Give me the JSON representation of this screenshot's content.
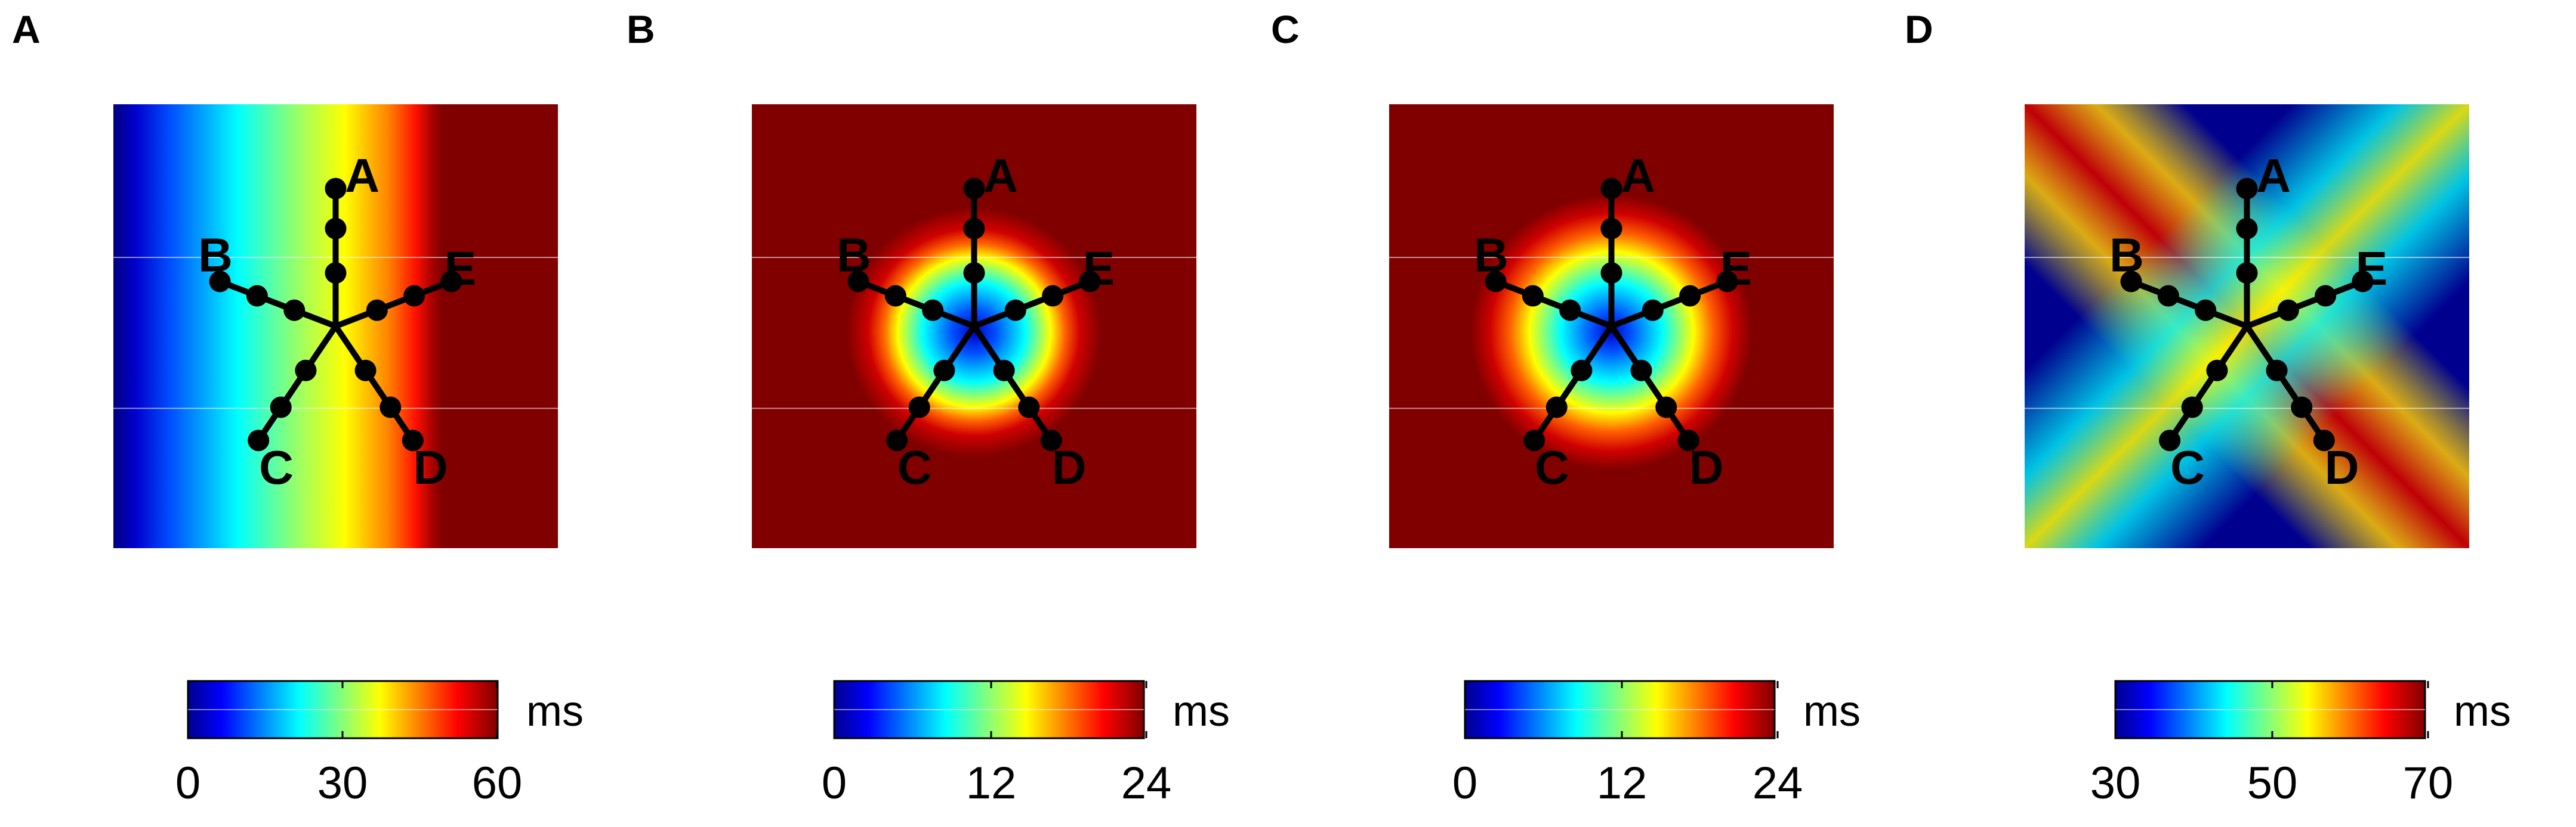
{
  "chart_data": [
    {
      "type": "heatmap",
      "panel_label": "A",
      "pattern": "vertical-bands",
      "colormap": "jet",
      "unit": "ms",
      "clim": [
        0,
        60
      ],
      "colorbar_ticks": [
        "0",
        "30",
        "60"
      ],
      "node_labels": [
        "A",
        "B",
        "C",
        "D",
        "E"
      ]
    },
    {
      "type": "heatmap",
      "panel_label": "B",
      "pattern": "pentagon-center",
      "colormap": "jet",
      "unit": "ms",
      "clim": [
        0,
        24
      ],
      "colorbar_ticks": [
        "0",
        "12",
        "24"
      ],
      "node_labels": [
        "A",
        "B",
        "C",
        "D",
        "E"
      ]
    },
    {
      "type": "heatmap",
      "panel_label": "C",
      "pattern": "irregular-center",
      "colormap": "jet",
      "unit": "ms",
      "clim": [
        0,
        24
      ],
      "colorbar_ticks": [
        "0",
        "12",
        "24"
      ],
      "node_labels": [
        "A",
        "B",
        "C",
        "D",
        "E"
      ]
    },
    {
      "type": "heatmap",
      "panel_label": "D",
      "pattern": "diagonal-x",
      "colormap": "jet",
      "unit": "ms",
      "clim": [
        30,
        70
      ],
      "colorbar_ticks": [
        "30",
        "50",
        "70"
      ],
      "node_labels": [
        "A",
        "B",
        "C",
        "D",
        "E"
      ]
    }
  ],
  "colors": {
    "dark_blue": "#00008f",
    "blue": "#0000ff",
    "cyan": "#00ffff",
    "yellow": "#ffff00",
    "red": "#ff0000",
    "dark_red": "#800000",
    "neuron": "#000000"
  }
}
